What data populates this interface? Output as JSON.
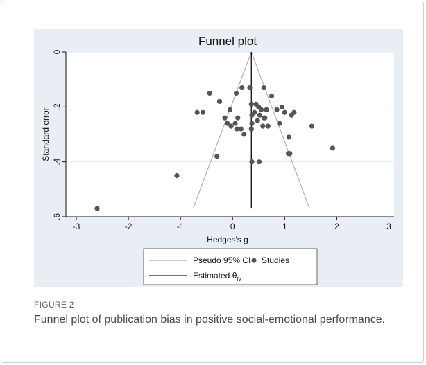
{
  "figure": {
    "label": "FIGURE 2",
    "caption": "Funnel plot of publication bias in positive social-emotional performance."
  },
  "colors": {
    "panel_background": "#e8eef3",
    "plot_background": "#ffffff",
    "points": "#555555",
    "ci_lines": "#b0b0b0",
    "estimate_line": "#1a1a1a"
  },
  "chart_data": {
    "type": "scatter",
    "title": "Funnel plot",
    "xlabel": "Hedges's g",
    "ylabel": "Standard error",
    "xlim": [
      -3.2,
      3.1
    ],
    "ylim": [
      0.6,
      0
    ],
    "y_reversed": true,
    "x_ticks": [
      -3,
      -2,
      -1,
      0,
      1,
      2,
      3
    ],
    "x_tick_labels": [
      "-3",
      "-2",
      "-1",
      "0",
      "1",
      "2",
      "3"
    ],
    "y_ticks": [
      0,
      0.2,
      0.4,
      0.6
    ],
    "y_tick_labels": [
      "0",
      ".2",
      ".4",
      ".6"
    ],
    "grid": "horizontal",
    "estimate": 0.36,
    "funnel_max_se": 0.57,
    "legend": {
      "position": "bottom",
      "entries": [
        {
          "label": "Pseudo 95% CI",
          "symbol": "line",
          "color": "#b0b0b0"
        },
        {
          "label": "Studies",
          "symbol": "marker",
          "color": "#555555"
        },
        {
          "label": "Estimated θ",
          "subscript": "IV",
          "symbol": "line",
          "color": "#1a1a1a"
        }
      ]
    },
    "series": [
      {
        "name": "Studies",
        "points": [
          [
            -2.6,
            0.57
          ],
          [
            -1.07,
            0.45
          ],
          [
            -0.44,
            0.15
          ],
          [
            -0.57,
            0.22
          ],
          [
            -0.68,
            0.22
          ],
          [
            -0.25,
            0.18
          ],
          [
            -0.05,
            0.21
          ],
          [
            -0.15,
            0.24
          ],
          [
            0.07,
            0.15
          ],
          [
            0.18,
            0.13
          ],
          [
            0.33,
            0.13
          ],
          [
            0.6,
            0.13
          ],
          [
            0.75,
            0.16
          ],
          [
            0.95,
            0.2
          ],
          [
            0.85,
            0.21
          ],
          [
            1.18,
            0.22
          ],
          [
            1.13,
            0.23
          ],
          [
            1.0,
            0.22
          ],
          [
            0.36,
            0.19
          ],
          [
            0.45,
            0.19
          ],
          [
            0.5,
            0.2
          ],
          [
            0.55,
            0.21
          ],
          [
            0.65,
            0.21
          ],
          [
            0.42,
            0.22
          ],
          [
            0.37,
            0.23
          ],
          [
            0.52,
            0.23
          ],
          [
            0.6,
            0.24
          ],
          [
            0.48,
            0.25
          ],
          [
            0.37,
            0.26
          ],
          [
            -0.1,
            0.26
          ],
          [
            -0.03,
            0.27
          ],
          [
            0.05,
            0.26
          ],
          [
            0.1,
            0.24
          ],
          [
            0.08,
            0.28
          ],
          [
            0.16,
            0.28
          ],
          [
            0.22,
            0.3
          ],
          [
            0.36,
            0.28
          ],
          [
            0.58,
            0.27
          ],
          [
            0.68,
            0.27
          ],
          [
            0.9,
            0.26
          ],
          [
            0.62,
            0.24
          ],
          [
            1.08,
            0.31
          ],
          [
            1.52,
            0.27
          ],
          [
            1.1,
            0.37
          ],
          [
            1.07,
            0.37
          ],
          [
            1.92,
            0.35
          ],
          [
            -0.3,
            0.38
          ],
          [
            0.37,
            0.4
          ],
          [
            0.51,
            0.4
          ]
        ]
      }
    ]
  }
}
